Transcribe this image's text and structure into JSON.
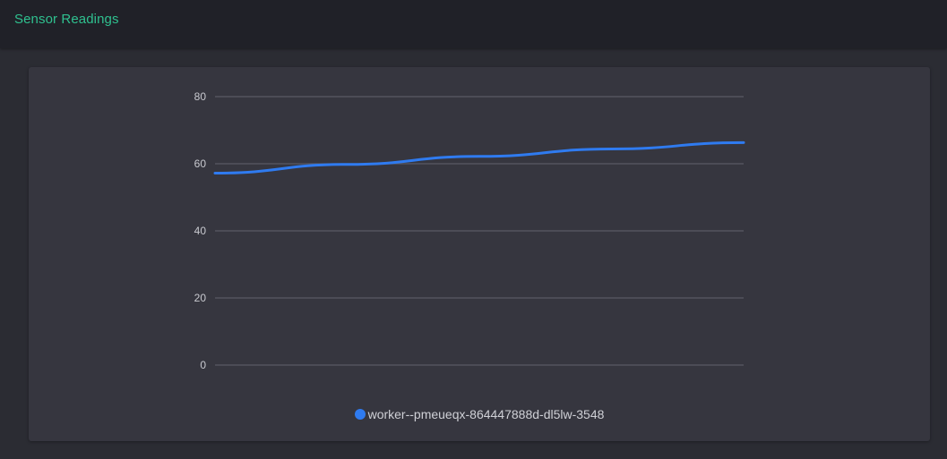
{
  "header": {
    "title": "Sensor Readings"
  },
  "colors": {
    "accent": "#2fc08f",
    "series": "#2f7bf0",
    "gridline": "#5a5a63"
  },
  "chart_data": {
    "type": "line",
    "ylim": [
      0,
      80
    ],
    "yticks": [
      "0",
      "20",
      "40",
      "60",
      "80"
    ],
    "grid": true,
    "legend_position": "bottom",
    "series": [
      {
        "name": "worker--pmeueqx-864447888d-dl5lw-3548",
        "values": [
          57.2,
          59.8,
          62.2,
          64.4,
          66.3
        ]
      }
    ]
  }
}
